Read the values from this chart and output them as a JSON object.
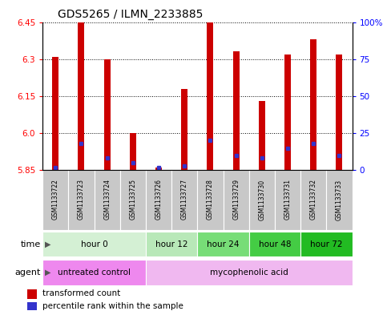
{
  "title": "GDS5265 / ILMN_2233885",
  "samples": [
    "GSM1133722",
    "GSM1133723",
    "GSM1133724",
    "GSM1133725",
    "GSM1133726",
    "GSM1133727",
    "GSM1133728",
    "GSM1133729",
    "GSM1133730",
    "GSM1133731",
    "GSM1133732",
    "GSM1133733"
  ],
  "transformed_counts": [
    6.31,
    6.45,
    6.3,
    6.0,
    5.86,
    6.18,
    6.45,
    6.33,
    6.13,
    6.32,
    6.38,
    6.32
  ],
  "percentile_ranks": [
    2,
    18,
    8,
    5,
    2,
    3,
    20,
    10,
    8,
    15,
    18,
    10
  ],
  "ymin": 5.85,
  "ymax": 6.45,
  "yticks": [
    5.85,
    6.0,
    6.15,
    6.3,
    6.45
  ],
  "right_yticks_labels": [
    "0",
    "25",
    "50",
    "75",
    "100%"
  ],
  "bar_color": "#cc0000",
  "percentile_color": "#3333cc",
  "bar_width": 0.25,
  "time_groups": [
    {
      "label": "hour 0",
      "start": 0,
      "end": 3,
      "color": "#d4f0d4"
    },
    {
      "label": "hour 12",
      "start": 4,
      "end": 5,
      "color": "#b8e8b8"
    },
    {
      "label": "hour 24",
      "start": 6,
      "end": 7,
      "color": "#77dd77"
    },
    {
      "label": "hour 48",
      "start": 8,
      "end": 9,
      "color": "#44cc44"
    },
    {
      "label": "hour 72",
      "start": 10,
      "end": 11,
      "color": "#22bb22"
    }
  ],
  "agent_groups": [
    {
      "label": "untreated control",
      "start": 0,
      "end": 3,
      "color": "#ee88ee"
    },
    {
      "label": "mycophenolic acid",
      "start": 4,
      "end": 11,
      "color": "#f0b8f0"
    }
  ],
  "sample_bg_color": "#c8c8c8",
  "sample_sep_color": "#ffffff",
  "legend_red": "transformed count",
  "legend_blue": "percentile rank within the sample",
  "arrow_color": "#555555"
}
